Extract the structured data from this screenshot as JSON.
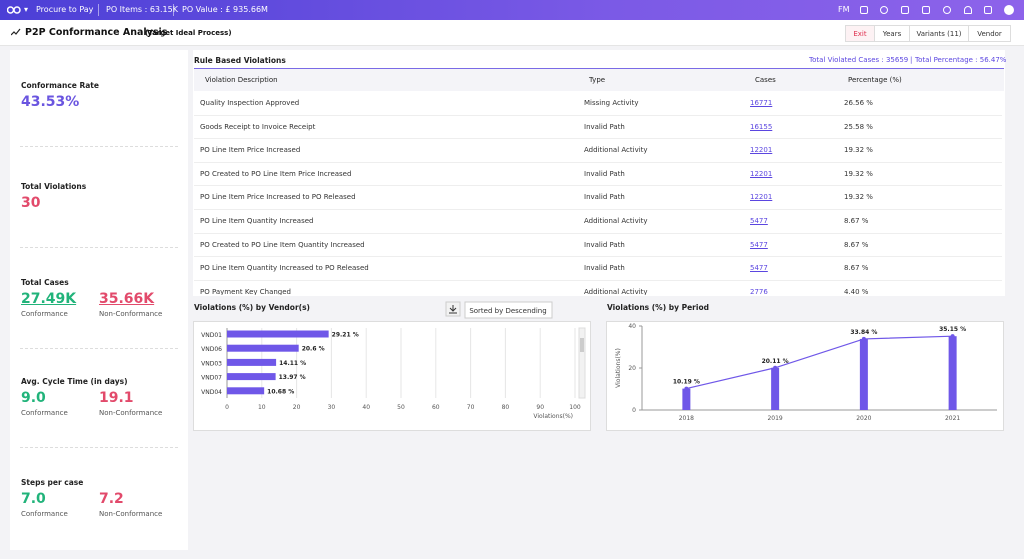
{
  "topbar": {
    "breadcrumb": "Procure to Pay",
    "po_items": "PO Items : 63.15K",
    "po_value": "PO Value : £ 935.66M",
    "user": "FM"
  },
  "header": {
    "title": "P2P Conformance Analysis",
    "subtitle": "(Target Ideal Process)",
    "tabs": [
      "Exit",
      "Years",
      "Variants (11)",
      "Vendor"
    ]
  },
  "metrics": {
    "conformance_rate": {
      "label": "Conformance Rate",
      "value": "43.53%"
    },
    "total_violations": {
      "label": "Total Violations",
      "value": "30"
    },
    "total_cases": {
      "label": "Total Cases",
      "conformance": "27.49K",
      "non_conformance": "35.66K",
      "conformance_label": "Conformance",
      "non_conformance_label": "Non-Conformance"
    },
    "avg_cycle_time": {
      "label": "Avg. Cycle Time (in days)",
      "conformance": "9.0",
      "non_conformance": "19.1",
      "conformance_label": "Conformance",
      "non_conformance_label": "Non-Conformance"
    },
    "steps_per_case": {
      "label": "Steps per case",
      "conformance": "7.0",
      "non_conformance": "7.2",
      "conformance_label": "Conformance",
      "non_conformance_label": "Non-Conformance"
    }
  },
  "table": {
    "title": "Rule Based Violations",
    "total_cases": "Total Violated Cases : 35659",
    "total_percentage": "Total Percentage : 56.47%",
    "columns": [
      "Violation Description",
      "Type",
      "Cases",
      "Percentage (%)"
    ],
    "rows": [
      [
        "Quality Inspection Approved",
        "Missing Activity",
        16771,
        "26.56 %"
      ],
      [
        "Goods Receipt to Invoice Receipt",
        "Invalid Path",
        16155,
        "25.58 %"
      ],
      [
        "PO Line Item Price Increased",
        "Additional Activity",
        12201,
        "19.32 %"
      ],
      [
        "PO Created to PO Line Item Price Increased",
        "Invalid Path",
        12201,
        "19.32 %"
      ],
      [
        "PO Line Item Price Increased to PO Released",
        "Invalid Path",
        12201,
        "19.32 %"
      ],
      [
        "PO Line Item Quantity Increased",
        "Additional Activity",
        5477,
        "8.67 %"
      ],
      [
        "PO Created to PO Line Item Quantity Increased",
        "Invalid Path",
        5477,
        "8.67 %"
      ],
      [
        "PO Line Item Quantity Increased to PO Released",
        "Invalid Path",
        5477,
        "8.67 %"
      ],
      [
        "PO Payment Key Changed",
        "Additional Activity",
        2776,
        "4.40 %"
      ]
    ]
  },
  "chart_data": [
    {
      "type": "bar",
      "orientation": "horizontal",
      "title": "Violations (%) by Vendor(s)",
      "sort_button": "Sorted by Descending",
      "x_label": "Violations(%)",
      "color": "#6f57e8",
      "categories": [
        "VND01",
        "VND06",
        "VND03",
        "VND07",
        "VND04"
      ],
      "values": [
        29.21,
        20.6,
        14.11,
        13.97,
        10.68
      ],
      "value_labels": [
        "29.21 %",
        "20.6 %",
        "14.11 %",
        "13.97 %",
        "10.68 %"
      ],
      "xlim": [
        0,
        100
      ],
      "xticks": [
        0,
        10,
        20,
        30,
        40,
        50,
        60,
        70,
        80,
        90,
        100
      ],
      "grid": true
    },
    {
      "type": "bar",
      "line": true,
      "title": "Violations (%) by Period",
      "y_label": "Violations(%)",
      "color": "#6f57e8",
      "categories": [
        "2018",
        "2019",
        "2020",
        "2021"
      ],
      "values": [
        10.19,
        20.11,
        33.84,
        35.15
      ],
      "value_labels": [
        "10.19 %",
        "20.11 %",
        "33.84 %",
        "35.15 %"
      ],
      "ylim": [
        0,
        40
      ],
      "yticks": [
        0,
        20,
        40
      ],
      "grid": false
    }
  ]
}
